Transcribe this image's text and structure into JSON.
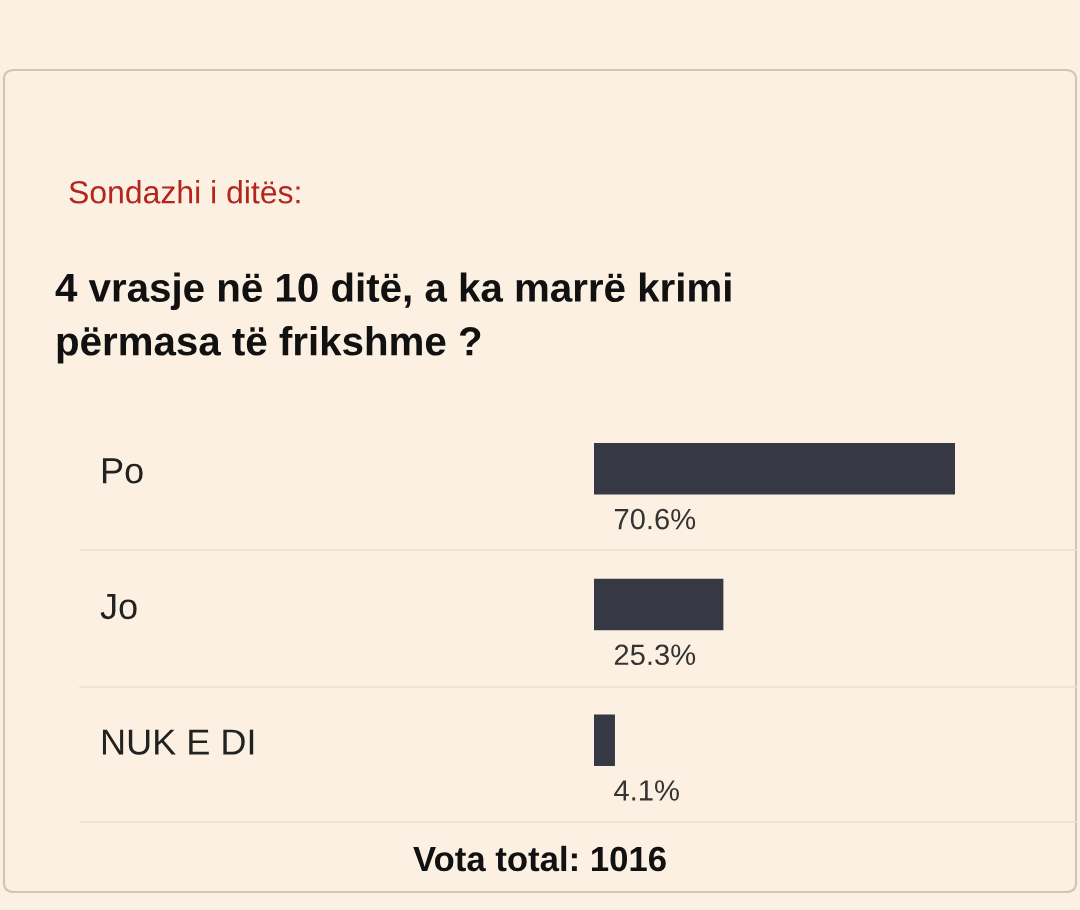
{
  "chart_data": {
    "type": "bar",
    "orientation": "horizontal",
    "title": "Sondazhi i ditës:",
    "subtitle": "4 vrasje në 10 ditë, a ka marrë krimi\npërmasa të frikshme ?",
    "categories": [
      "Po",
      "Jo",
      "NUK E DI"
    ],
    "values": [
      70.6,
      25.3,
      4.1
    ],
    "value_labels": [
      "70.6%",
      "25.3%",
      "4.1%"
    ],
    "color": "#363844",
    "annotations": [
      "Vota total: 1016"
    ]
  }
}
